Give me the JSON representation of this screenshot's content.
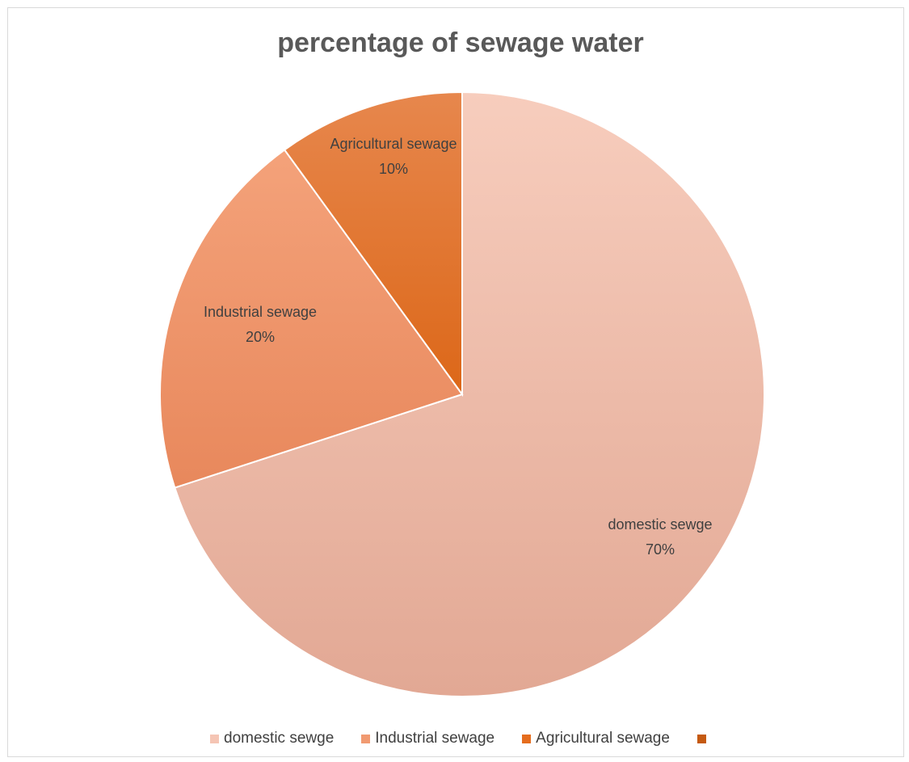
{
  "chart_data": {
    "type": "pie",
    "title": "percentage of sewage water",
    "legend_position": "bottom",
    "slices": [
      {
        "name": "domestic sewge",
        "label": "domestic sewge",
        "value": 70,
        "value_label": "70%",
        "color": "#f4b9a4",
        "legend_color": "#f5c5b4"
      },
      {
        "name": "Industrial sewage",
        "label": "Industrial sewage",
        "value": 20,
        "value_label": "20%",
        "color": "#ee9368",
        "legend_color": "#f19a71"
      },
      {
        "name": "Agricultural sewage",
        "label": "Agricultural sewage",
        "value": 10,
        "value_label": "10%",
        "color": "#e4732a",
        "legend_color": "#e56d1e"
      },
      {
        "name": "",
        "label": "",
        "value": 0,
        "value_label": "",
        "color": "#c55a11",
        "legend_color": "#c55a11"
      }
    ]
  }
}
